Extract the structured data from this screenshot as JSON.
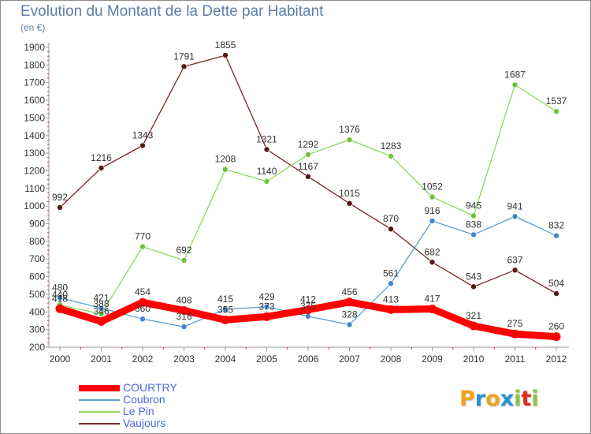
{
  "title": "Evolution du Montant de la Dette par Habitant",
  "subtitle": "(en €)",
  "logo": {
    "text": "Proxiti",
    "letter_colors": [
      "#f4a21c",
      "#2b8fd6",
      "#f4a21c",
      "#2b8fd6",
      "#8cc63e",
      "#e2281f",
      "#8cc63e"
    ]
  },
  "chart_data": {
    "type": "line",
    "x": [
      2000,
      2001,
      2002,
      2003,
      2004,
      2005,
      2006,
      2007,
      2008,
      2009,
      2010,
      2011,
      2012
    ],
    "ylim": [
      200,
      1900
    ],
    "yticks": [
      200,
      300,
      400,
      500,
      600,
      700,
      800,
      900,
      1000,
      1100,
      1200,
      1300,
      1400,
      1500,
      1600,
      1700,
      1800,
      1900
    ],
    "grid": false,
    "legend_position": "bottom-left",
    "series": [
      {
        "name": "Vaujours",
        "color": "#7a2424",
        "marker": "#5a1414",
        "width": 1.3,
        "values": [
          992,
          1216,
          1343,
          1791,
          1855,
          1321,
          1167,
          1015,
          870,
          682,
          543,
          637,
          504
        ]
      },
      {
        "name": "Le Pin",
        "color": "#8fd860",
        "marker": "#6cc43a",
        "width": 1.3,
        "values": [
          440,
          388,
          770,
          692,
          1208,
          1140,
          1292,
          1376,
          1283,
          1052,
          945,
          1687,
          1537
        ]
      },
      {
        "name": "Coubron",
        "color": "#5d9ed6",
        "marker": "#3f86cc",
        "width": 1.3,
        "values": [
          480,
          421,
          360,
          316,
          415,
          429,
          375,
          328,
          561,
          916,
          838,
          941,
          832
        ]
      },
      {
        "name": "COURTRY",
        "color": "#ff0000",
        "marker": "#ff0000",
        "width": 9,
        "values": [
          418,
          346,
          454,
          408,
          355,
          373,
          412,
          456,
          413,
          417,
          321,
          275,
          260
        ]
      }
    ],
    "data_labels": [
      [
        "992",
        "1216",
        "1343",
        "1791",
        "1855",
        "1321",
        "1167",
        "1015",
        "870",
        "682",
        "543",
        "637",
        "504"
      ],
      [
        "440",
        "388",
        "770",
        "692",
        "1208",
        "1140",
        "1292",
        "1376",
        "1283",
        "1052",
        "945",
        "1687",
        "1537"
      ],
      [
        "480",
        "421",
        "360",
        "316",
        "415",
        "429",
        "375",
        "328",
        "561",
        "916",
        "838",
        "941",
        "832"
      ],
      [
        "418",
        "346",
        "454",
        "408",
        "355",
        "373",
        "412",
        "456",
        "413",
        "417",
        "321",
        "275",
        "260"
      ]
    ]
  },
  "legend": [
    {
      "label": "COURTRY",
      "color": "#ff0000",
      "thick": true
    },
    {
      "label": "Coubron",
      "color": "#5d9ed6",
      "thick": false
    },
    {
      "label": "Le Pin",
      "color": "#8fd860",
      "thick": false
    },
    {
      "label": "Vaujours",
      "color": "#7a2424",
      "thick": false
    }
  ]
}
